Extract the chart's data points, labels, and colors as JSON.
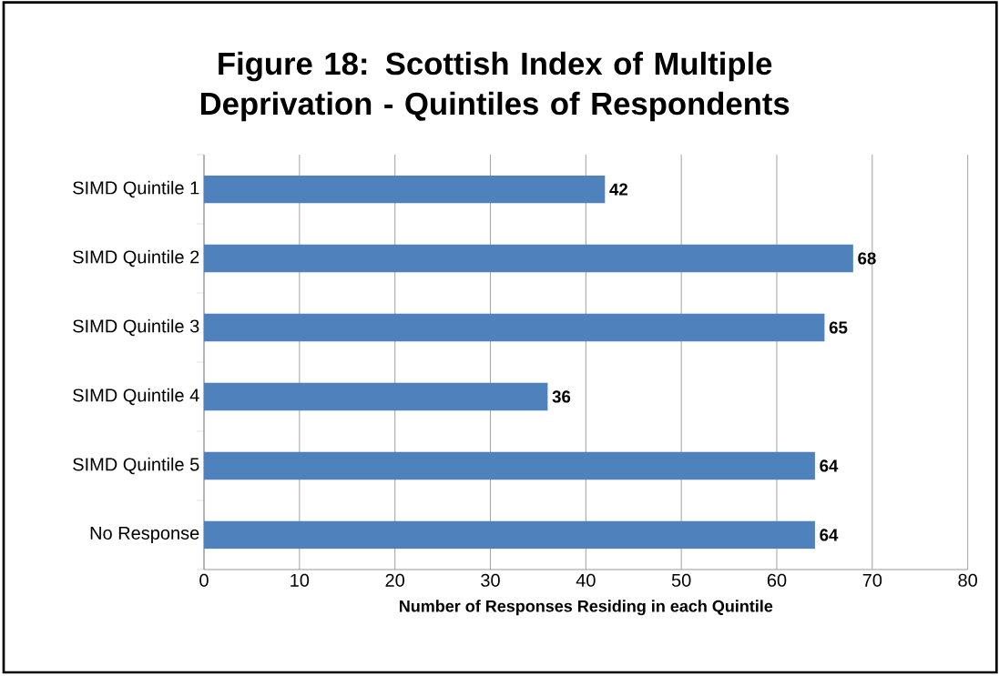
{
  "chart_data": {
    "type": "bar",
    "orientation": "horizontal",
    "title": "Figure 18: Scottish Index of Multiple Deprivation - Quintiles of Respondents",
    "xlabel": "Number of Responses Residing in each Quintile",
    "categories": [
      "SIMD Quintile 1",
      "SIMD Quintile 2",
      "SIMD Quintile 3",
      "SIMD Quintile 4",
      "SIMD Quintile 5",
      "No Response"
    ],
    "values": [
      42,
      68,
      65,
      36,
      64,
      64
    ],
    "color": "#4f81bd",
    "data_labels": true,
    "xlim": [
      0,
      80
    ],
    "xticks": [
      0,
      10,
      20,
      30,
      40,
      50,
      60,
      70,
      80
    ],
    "grid": "x"
  }
}
